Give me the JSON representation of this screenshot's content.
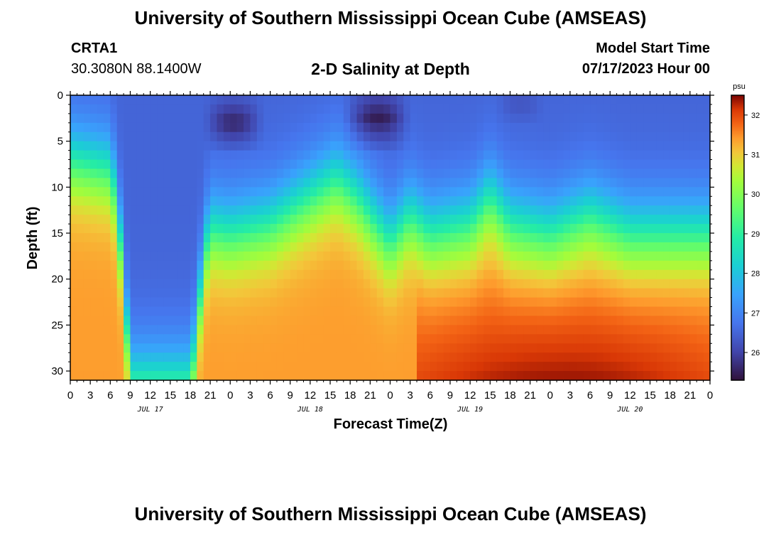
{
  "header": {
    "title": "University of Southern Mississippi Ocean Cube (AMSEAS)",
    "station_name": "CRTA1",
    "station_coords": "30.3080N  88.1400W",
    "plot_label": "2-D Salinity at Depth",
    "model_start_label": "Model Start Time",
    "model_start_value": "07/17/2023 Hour 00"
  },
  "footer": {
    "title": "University of Southern Mississippi Ocean Cube (AMSEAS)"
  },
  "chart_data": {
    "type": "heatmap",
    "title": "2-D Salinity at Depth",
    "xlabel": "Forecast Time(Z)",
    "ylabel": "Depth (ft)",
    "x_unit": "forecast hour",
    "xlim": [
      0,
      96
    ],
    "ylim": [
      0,
      31
    ],
    "x_tick_values": [
      0,
      3,
      6,
      9,
      12,
      15,
      18,
      21,
      24,
      27,
      30,
      33,
      36,
      39,
      42,
      45,
      48,
      51,
      54,
      57,
      60,
      63,
      66,
      69,
      72,
      75,
      78,
      81,
      84,
      87,
      90,
      93,
      96
    ],
    "x_tick_labels": [
      "0",
      "3",
      "6",
      "9",
      "12",
      "15",
      "18",
      "21",
      "0",
      "3",
      "6",
      "9",
      "12",
      "15",
      "18",
      "21",
      "0",
      "3",
      "6",
      "9",
      "12",
      "15",
      "18",
      "21",
      "0",
      "3",
      "6",
      "9",
      "12",
      "15",
      "18",
      "21",
      "0"
    ],
    "day_labels": [
      {
        "label": "JUL 17",
        "hour": 12
      },
      {
        "label": "JUL 18",
        "hour": 36
      },
      {
        "label": "JUL 19",
        "hour": 60
      },
      {
        "label": "JUL 20",
        "hour": 84
      }
    ],
    "y_ticks": [
      0,
      5,
      10,
      15,
      20,
      25,
      30
    ],
    "y_tick_labels": [
      "0",
      "5",
      "10",
      "15",
      "20",
      "25",
      "30"
    ],
    "colorbar": {
      "label": "psu",
      "min": 25.3,
      "max": 32.5,
      "ticks": [
        26,
        27,
        28,
        29,
        30,
        31,
        32
      ],
      "tick_labels": [
        "26",
        "27",
        "28",
        "29",
        "30",
        "31",
        "32"
      ]
    },
    "halocline_depth_ft": [
      {
        "hour": 0,
        "depth": 7
      },
      {
        "hour": 6,
        "depth": 8
      },
      {
        "hour": 7,
        "depth": 12
      },
      {
        "hour": 8,
        "depth": 20
      },
      {
        "hour": 9,
        "depth": 31
      },
      {
        "hour": 18,
        "depth": 31
      },
      {
        "hour": 19,
        "depth": 26
      },
      {
        "hour": 20,
        "depth": 18
      },
      {
        "hour": 21,
        "depth": 14.5
      },
      {
        "hour": 24,
        "depth": 15
      },
      {
        "hour": 30,
        "depth": 14
      },
      {
        "hour": 36,
        "depth": 11
      },
      {
        "hour": 40,
        "depth": 9
      },
      {
        "hour": 43,
        "depth": 11
      },
      {
        "hour": 46,
        "depth": 14
      },
      {
        "hour": 48,
        "depth": 16
      },
      {
        "hour": 51,
        "depth": 13
      },
      {
        "hour": 54,
        "depth": 15
      },
      {
        "hour": 60,
        "depth": 14
      },
      {
        "hour": 63,
        "depth": 11
      },
      {
        "hour": 66,
        "depth": 14
      },
      {
        "hour": 72,
        "depth": 15
      },
      {
        "hour": 78,
        "depth": 13
      },
      {
        "hour": 84,
        "depth": 15
      },
      {
        "hour": 96,
        "depth": 15
      }
    ],
    "fresh_cores": [
      {
        "start_hour": 20,
        "end_hour": 29,
        "top_ft": 1,
        "bottom_ft": 5,
        "min_salinity": 25.5
      },
      {
        "start_hour": 41,
        "end_hour": 51,
        "top_ft": 0,
        "bottom_ft": 5,
        "min_salinity": 25.4
      },
      {
        "start_hour": 64,
        "end_hour": 71,
        "top_ft": 0,
        "bottom_ft": 2,
        "min_salinity": 26.2
      }
    ],
    "surface_salinity": 26.5,
    "deep_salinity": 31.4,
    "max_salinity": 32.4
  }
}
